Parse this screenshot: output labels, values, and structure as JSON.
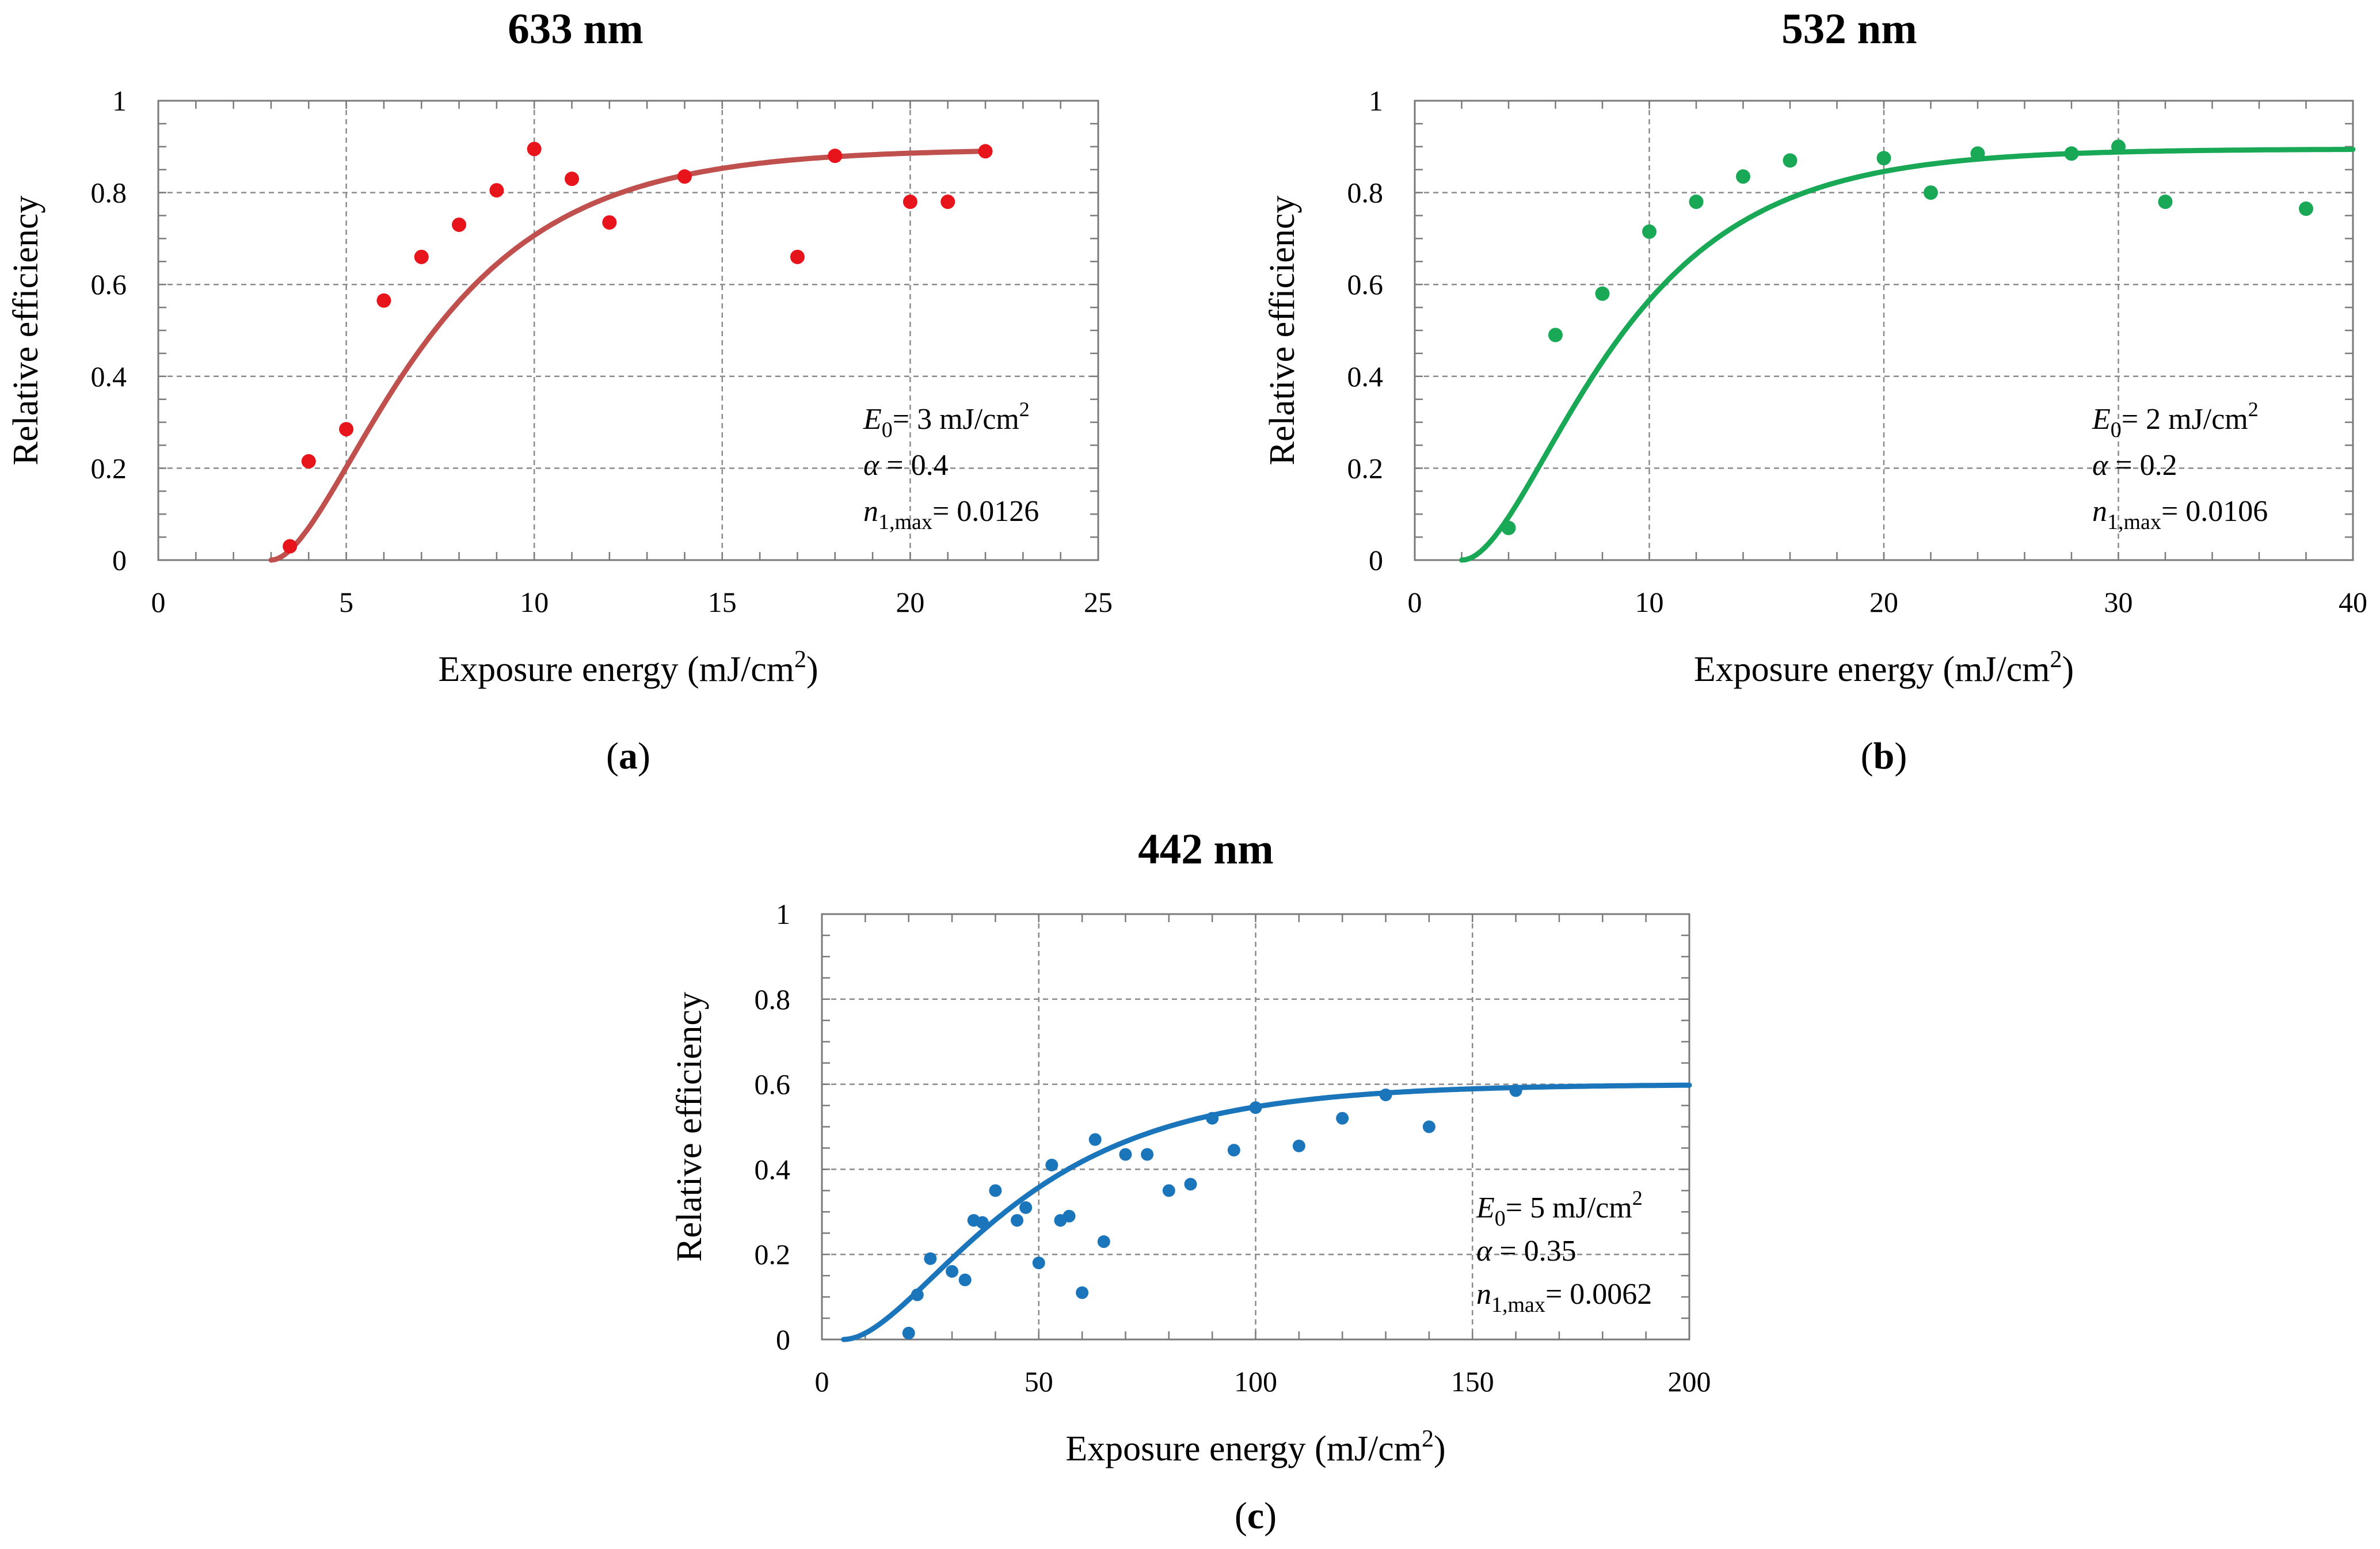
{
  "chart_data": [
    {
      "type": "scatter",
      "title": "633 nm",
      "panel_label": "a",
      "xlabel": "Exposure energy (mJ/cm",
      "xlabel_sup": "2",
      "xlabel_end": ")",
      "ylabel": "Relative efficiency",
      "xlim": [
        0,
        25
      ],
      "ylim": [
        0,
        1
      ],
      "xticks": [
        0,
        5,
        10,
        15,
        20,
        25
      ],
      "yticks": [
        0,
        0.2,
        0.4,
        0.6,
        0.8,
        1
      ],
      "ytick_labels": [
        "0",
        "0.2",
        "0.4",
        "0.6",
        "0.8",
        "1"
      ],
      "grid": true,
      "point_color": "#e8141c",
      "line_color": "#c0504d",
      "points": {
        "x": [
          3.5,
          4,
          5,
          6,
          7,
          8,
          9,
          10,
          11,
          12,
          14,
          17,
          18,
          20,
          21,
          22
        ],
        "y": [
          0.03,
          0.215,
          0.285,
          0.565,
          0.66,
          0.73,
          0.805,
          0.895,
          0.83,
          0.735,
          0.835,
          0.66,
          0.88,
          0.78,
          0.78,
          0.89
        ]
      },
      "fit": {
        "model": "saturating exponential",
        "E0": 3,
        "alpha": 0.4,
        "max": 0.895,
        "x_end": 22
      },
      "annotation": {
        "line1_var": "E",
        "line1_sub": "0",
        "line1_text": "= 3 mJ/cm",
        "line1_sup": "2",
        "line2_var": "α",
        "line2_text": " = 0.4",
        "line3_var": "n",
        "line3_sub": "1,max",
        "line3_text": "= 0.0126"
      }
    },
    {
      "type": "scatter",
      "title": "532 nm",
      "panel_label": "b",
      "xlabel": "Exposure energy (mJ/cm",
      "xlabel_sup": "2",
      "xlabel_end": ")",
      "ylabel": "Relative efficiency",
      "xlim": [
        0,
        40
      ],
      "ylim": [
        0,
        1
      ],
      "xticks": [
        0,
        10,
        20,
        30,
        40
      ],
      "yticks": [
        0,
        0.2,
        0.4,
        0.6,
        0.8,
        1
      ],
      "ytick_labels": [
        "0",
        "0.2",
        "0.4",
        "0.6",
        "0.8",
        "1"
      ],
      "grid": true,
      "point_color": "#19a855",
      "line_color": "#19a855",
      "points": {
        "x": [
          4,
          6,
          8,
          10,
          12,
          14,
          16,
          20,
          22,
          24,
          28,
          30,
          32,
          38
        ],
        "y": [
          0.07,
          0.49,
          0.58,
          0.715,
          0.78,
          0.835,
          0.87,
          0.875,
          0.8,
          0.885,
          0.885,
          0.9,
          0.78,
          0.765
        ]
      },
      "fit": {
        "model": "saturating exponential",
        "E0": 2,
        "alpha": 0.2,
        "max": 0.895,
        "x_end": 40
      },
      "annotation": {
        "line1_var": "E",
        "line1_sub": "0",
        "line1_text": "= 2 mJ/cm",
        "line1_sup": "2",
        "line2_var": "α",
        "line2_text": " = 0.2",
        "line3_var": "n",
        "line3_sub": "1,max",
        "line3_text": "= 0.0106"
      }
    },
    {
      "type": "scatter",
      "title": "442 nm",
      "panel_label": "c",
      "xlabel": "Exposure energy (mJ/cm",
      "xlabel_sup": "2",
      "xlabel_end": ")",
      "ylabel": "Relative efficiency",
      "xlim": [
        0,
        200
      ],
      "ylim": [
        0,
        1
      ],
      "xticks": [
        0,
        50,
        100,
        150,
        200
      ],
      "yticks": [
        0,
        0.2,
        0.4,
        0.6,
        0.8,
        1
      ],
      "ytick_labels": [
        "0",
        "0.2",
        "0.4",
        "0.6",
        "0.8",
        "1"
      ],
      "grid": true,
      "point_color": "#1b75bb",
      "line_color": "#1b75bb",
      "points": {
        "x": [
          20,
          22,
          25,
          30,
          33,
          35,
          37,
          40,
          45,
          47,
          50,
          53,
          55,
          57,
          60,
          63,
          65,
          70,
          75,
          80,
          85,
          90,
          95,
          100,
          110,
          120,
          130,
          140,
          160
        ],
        "y": [
          0.015,
          0.105,
          0.19,
          0.16,
          0.14,
          0.28,
          0.275,
          0.35,
          0.28,
          0.31,
          0.18,
          0.41,
          0.28,
          0.29,
          0.11,
          0.47,
          0.23,
          0.435,
          0.435,
          0.35,
          0.365,
          0.52,
          0.445,
          0.545,
          0.455,
          0.52,
          0.575,
          0.5,
          0.585
        ]
      },
      "fit": {
        "model": "saturating exponential",
        "E0": 5,
        "alpha": 0.35,
        "max": 0.6,
        "x_end": 200
      },
      "annotation": {
        "line1_var": "E",
        "line1_sub": "0",
        "line1_text": "= 5 mJ/cm",
        "line1_sup": "2",
        "line2_var": "α",
        "line2_text": " = 0.35",
        "line3_var": "n",
        "line3_sub": "1,max",
        "line3_text": "= 0.0062"
      }
    }
  ]
}
